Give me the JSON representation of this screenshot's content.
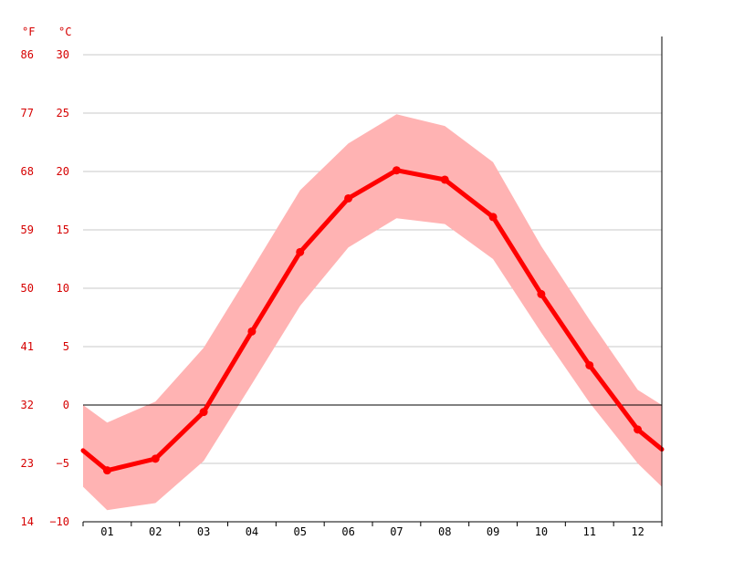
{
  "chart_data": {
    "type": "line",
    "categories": [
      "01",
      "02",
      "03",
      "04",
      "05",
      "06",
      "07",
      "08",
      "09",
      "10",
      "11",
      "12"
    ],
    "y_axis_c": {
      "label": "°C",
      "ticks": [
        30,
        25,
        20,
        15,
        10,
        5,
        0,
        -5,
        -10
      ],
      "ylim": [
        -10,
        30
      ]
    },
    "y_axis_f": {
      "label": "°F",
      "ticks": [
        86,
        77,
        68,
        59,
        50,
        41,
        32,
        23,
        14
      ]
    },
    "series": [
      {
        "kind": "mean",
        "values": [
          -5.6,
          -4.6,
          -0.6,
          6.3,
          13.1,
          17.7,
          20.1,
          19.3,
          16.1,
          9.5,
          3.4,
          -2.1
        ]
      },
      {
        "kind": "max",
        "values": [
          -1.5,
          0.3,
          4.9,
          11.6,
          18.4,
          22.4,
          24.9,
          23.9,
          20.8,
          13.6,
          7.3,
          1.3
        ]
      },
      {
        "kind": "min",
        "values": [
          -9.0,
          -8.4,
          -4.8,
          1.8,
          8.5,
          13.5,
          16.0,
          15.5,
          12.5,
          6.2,
          0.2,
          -5.0
        ]
      }
    ],
    "edge_values": {
      "mean_left": -3.9,
      "mean_right": -3.8,
      "max_left": 0.0,
      "max_right": 0.0,
      "min_left": -7.0,
      "min_right": -7.0
    },
    "grid": true,
    "colors": {
      "line": "#ff0000",
      "band": "#ffb3b3",
      "tick_labels": "#d60000",
      "grid": "#c8c8c8",
      "zero_line": "#000000"
    }
  }
}
